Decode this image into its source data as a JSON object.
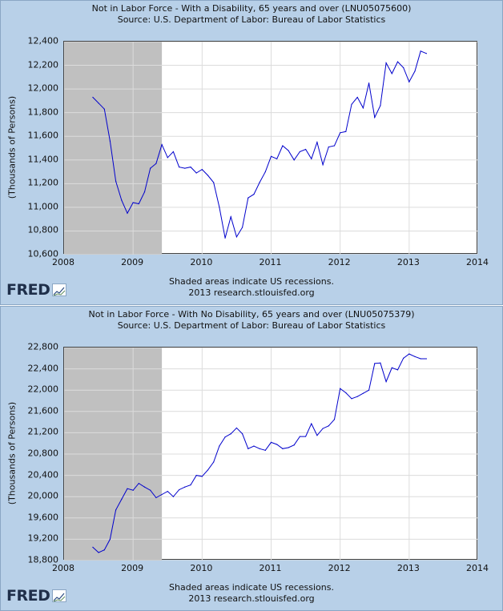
{
  "chart_data": [
    {
      "type": "line",
      "title": "Not in Labor Force - With a Disability, 65 years and over (LNU05075600)",
      "source": "Source: U.S. Department of Labor: Bureau of Labor Statistics",
      "ylabel": "(Thousands of Persons)",
      "xlim": [
        2008,
        2014
      ],
      "ylim": [
        10600,
        12400
      ],
      "xticks": [
        "2008",
        "2009",
        "2010",
        "2011",
        "2012",
        "2013",
        "2014"
      ],
      "yticks": [
        "10,600",
        "10,800",
        "11,000",
        "11,200",
        "11,400",
        "11,600",
        "11,800",
        "12,000",
        "12,200",
        "12,400"
      ],
      "recession": [
        2008.0,
        2009.417
      ],
      "grid": true,
      "series_color": "#0000cc",
      "x": [
        "2008-06",
        "2008-07",
        "2008-08",
        "2008-09",
        "2008-10",
        "2008-11",
        "2008-12",
        "2009-01",
        "2009-02",
        "2009-03",
        "2009-04",
        "2009-05",
        "2009-06",
        "2009-07",
        "2009-08",
        "2009-09",
        "2009-10",
        "2009-11",
        "2009-12",
        "2010-01",
        "2010-02",
        "2010-03",
        "2010-04",
        "2010-05",
        "2010-06",
        "2010-07",
        "2010-08",
        "2010-09",
        "2010-10",
        "2010-11",
        "2010-12",
        "2011-01",
        "2011-02",
        "2011-03",
        "2011-04",
        "2011-05",
        "2011-06",
        "2011-07",
        "2011-08",
        "2011-09",
        "2011-10",
        "2011-11",
        "2011-12",
        "2012-01",
        "2012-02",
        "2012-03",
        "2012-04",
        "2012-05",
        "2012-06",
        "2012-07",
        "2012-08",
        "2012-09",
        "2012-10",
        "2012-11",
        "2012-12",
        "2013-01",
        "2013-02",
        "2013-03",
        "2013-04"
      ],
      "values": [
        11930,
        11880,
        11830,
        11560,
        11220,
        11060,
        10950,
        11040,
        11030,
        11130,
        11330,
        11370,
        11530,
        11420,
        11470,
        11340,
        11330,
        11340,
        11290,
        11320,
        11270,
        11210,
        11000,
        10740,
        10920,
        10750,
        10830,
        11080,
        11110,
        11210,
        11300,
        11430,
        11410,
        11520,
        11480,
        11400,
        11470,
        11490,
        11410,
        11550,
        11360,
        11510,
        11520,
        11630,
        11640,
        11870,
        11930,
        11840,
        12050,
        11760,
        11860,
        12220,
        12130,
        12230,
        12180,
        12060,
        12150,
        12320,
        12300
      ]
    },
    {
      "type": "line",
      "title": "Not in Labor Force - With No Disability, 65 years and over (LNU05075379)",
      "source": "Source: U.S. Department of Labor: Bureau of Labor Statistics",
      "ylabel": "(Thousands of Persons)",
      "xlim": [
        2008,
        2014
      ],
      "ylim": [
        18800,
        22800
      ],
      "xticks": [
        "2008",
        "2009",
        "2010",
        "2011",
        "2012",
        "2013",
        "2014"
      ],
      "yticks": [
        "18,800",
        "19,200",
        "19,600",
        "20,000",
        "20,400",
        "20,800",
        "21,200",
        "21,600",
        "22,000",
        "22,400",
        "22,800"
      ],
      "recession": [
        2008.0,
        2009.417
      ],
      "grid": true,
      "series_color": "#0000cc",
      "x": [
        "2008-06",
        "2008-07",
        "2008-08",
        "2008-09",
        "2008-10",
        "2008-11",
        "2008-12",
        "2009-01",
        "2009-02",
        "2009-03",
        "2009-04",
        "2009-05",
        "2009-06",
        "2009-07",
        "2009-08",
        "2009-09",
        "2009-10",
        "2009-11",
        "2009-12",
        "2010-01",
        "2010-02",
        "2010-03",
        "2010-04",
        "2010-05",
        "2010-06",
        "2010-07",
        "2010-08",
        "2010-09",
        "2010-10",
        "2010-11",
        "2010-12",
        "2011-01",
        "2011-02",
        "2011-03",
        "2011-04",
        "2011-05",
        "2011-06",
        "2011-07",
        "2011-08",
        "2011-09",
        "2011-10",
        "2011-11",
        "2011-12",
        "2012-01",
        "2012-02",
        "2012-03",
        "2012-04",
        "2012-05",
        "2012-06",
        "2012-07",
        "2012-08",
        "2012-09",
        "2012-10",
        "2012-11",
        "2012-12",
        "2013-01",
        "2013-02",
        "2013-03",
        "2013-04"
      ],
      "values": [
        19050,
        18950,
        19000,
        19200,
        19750,
        19950,
        20150,
        20120,
        20250,
        20180,
        20120,
        19980,
        20040,
        20100,
        20000,
        20130,
        20180,
        20220,
        20400,
        20380,
        20500,
        20650,
        20950,
        21120,
        21180,
        21290,
        21180,
        20900,
        20950,
        20900,
        20870,
        21020,
        20980,
        20900,
        20920,
        20970,
        21130,
        21130,
        21370,
        21150,
        21280,
        21330,
        21450,
        22030,
        21950,
        21840,
        21880,
        21940,
        22000,
        22500,
        22510,
        22160,
        22420,
        22380,
        22600,
        22680,
        22630,
        22590,
        22590
      ]
    }
  ],
  "footer": {
    "note": "Shaded areas indicate US recessions.",
    "source": "2013 research.stlouisfed.org",
    "logo_text": "FRED"
  }
}
